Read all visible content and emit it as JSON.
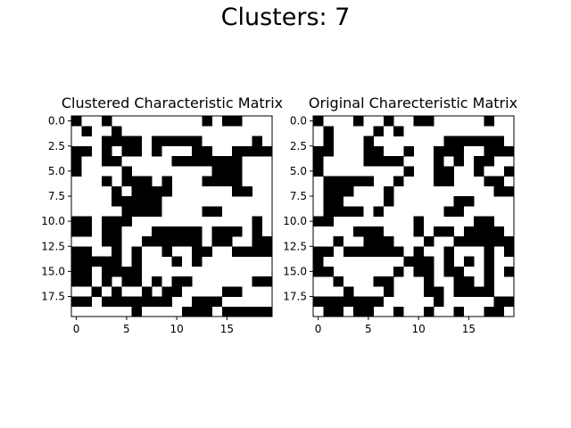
{
  "figure": {
    "suptitle": "Clusters: 7"
  },
  "chart_data": [
    {
      "type": "heatmap",
      "title": "Clustered Characteristic Matrix",
      "rows": 20,
      "cols": 20,
      "cmap": "binary",
      "colors": {
        "1": "#000000",
        "0": "#ffffff"
      },
      "x_ticks": [
        0,
        5,
        10,
        15
      ],
      "x_tick_labels": [
        "0",
        "5",
        "10",
        "15"
      ],
      "y_ticks": [
        0,
        2.5,
        5,
        7.5,
        10,
        12.5,
        15,
        17.5
      ],
      "y_tick_labels": [
        "0.0",
        "2.5",
        "5.0",
        "7.5",
        "10.0",
        "12.5",
        "15.0",
        "17.5"
      ],
      "matrix": [
        [
          1,
          0,
          0,
          1,
          0,
          0,
          0,
          0,
          0,
          0,
          0,
          0,
          0,
          1,
          0,
          1,
          1,
          0,
          0,
          0
        ],
        [
          0,
          1,
          0,
          0,
          1,
          0,
          0,
          0,
          0,
          0,
          0,
          0,
          0,
          0,
          0,
          0,
          0,
          0,
          0,
          0
        ],
        [
          0,
          0,
          0,
          1,
          1,
          1,
          1,
          0,
          1,
          1,
          1,
          1,
          1,
          0,
          0,
          0,
          0,
          0,
          1,
          0
        ],
        [
          1,
          1,
          0,
          1,
          0,
          1,
          1,
          0,
          1,
          0,
          0,
          0,
          1,
          1,
          0,
          0,
          1,
          1,
          1,
          1
        ],
        [
          1,
          0,
          0,
          1,
          1,
          0,
          0,
          0,
          0,
          0,
          1,
          1,
          1,
          1,
          1,
          1,
          1,
          0,
          0,
          0
        ],
        [
          1,
          0,
          0,
          0,
          0,
          1,
          0,
          0,
          0,
          0,
          0,
          0,
          0,
          0,
          1,
          1,
          1,
          0,
          0,
          0
        ],
        [
          0,
          0,
          0,
          1,
          0,
          1,
          1,
          1,
          0,
          1,
          0,
          0,
          0,
          1,
          1,
          1,
          1,
          0,
          0,
          0
        ],
        [
          0,
          0,
          0,
          0,
          1,
          0,
          1,
          1,
          1,
          1,
          0,
          0,
          0,
          0,
          0,
          0,
          1,
          1,
          0,
          0
        ],
        [
          0,
          0,
          0,
          0,
          1,
          1,
          1,
          1,
          1,
          0,
          0,
          0,
          0,
          0,
          0,
          0,
          0,
          0,
          0,
          0
        ],
        [
          0,
          0,
          0,
          0,
          0,
          1,
          1,
          1,
          1,
          0,
          0,
          0,
          0,
          1,
          1,
          0,
          0,
          0,
          0,
          0
        ],
        [
          1,
          1,
          0,
          1,
          1,
          1,
          0,
          0,
          0,
          0,
          0,
          0,
          0,
          0,
          0,
          0,
          0,
          0,
          1,
          0
        ],
        [
          1,
          1,
          0,
          1,
          1,
          0,
          0,
          0,
          1,
          1,
          1,
          1,
          1,
          0,
          1,
          1,
          1,
          0,
          1,
          0
        ],
        [
          0,
          0,
          0,
          1,
          1,
          0,
          0,
          1,
          1,
          1,
          1,
          1,
          1,
          0,
          1,
          1,
          0,
          0,
          1,
          1
        ],
        [
          1,
          1,
          0,
          0,
          1,
          0,
          1,
          0,
          0,
          1,
          0,
          0,
          1,
          1,
          0,
          0,
          1,
          1,
          1,
          1
        ],
        [
          1,
          1,
          1,
          1,
          1,
          0,
          1,
          0,
          0,
          0,
          1,
          0,
          1,
          0,
          0,
          0,
          0,
          0,
          0,
          0
        ],
        [
          1,
          1,
          0,
          1,
          1,
          1,
          1,
          0,
          0,
          0,
          0,
          0,
          0,
          0,
          0,
          0,
          0,
          0,
          0,
          0
        ],
        [
          1,
          1,
          0,
          1,
          0,
          1,
          1,
          0,
          1,
          0,
          1,
          1,
          0,
          0,
          0,
          0,
          0,
          0,
          1,
          1
        ],
        [
          0,
          0,
          1,
          0,
          1,
          0,
          0,
          1,
          0,
          1,
          1,
          0,
          0,
          0,
          0,
          1,
          1,
          0,
          0,
          0
        ],
        [
          1,
          1,
          0,
          1,
          1,
          1,
          1,
          1,
          1,
          1,
          0,
          0,
          1,
          1,
          1,
          0,
          0,
          0,
          0,
          0
        ],
        [
          0,
          0,
          0,
          0,
          0,
          0,
          1,
          0,
          0,
          0,
          0,
          1,
          1,
          1,
          0,
          1,
          1,
          1,
          1,
          1
        ]
      ]
    },
    {
      "type": "heatmap",
      "title": "Original Charecteristic Matrix",
      "rows": 20,
      "cols": 20,
      "cmap": "binary",
      "colors": {
        "1": "#000000",
        "0": "#ffffff"
      },
      "x_ticks": [
        0,
        5,
        10,
        15
      ],
      "x_tick_labels": [
        "0",
        "5",
        "10",
        "15"
      ],
      "y_ticks": [
        0,
        2.5,
        5,
        7.5,
        10,
        12.5,
        15,
        17.5
      ],
      "y_tick_labels": [
        "0.0",
        "2.5",
        "5.0",
        "7.5",
        "10.0",
        "12.5",
        "15.0",
        "17.5"
      ],
      "matrix": [
        [
          1,
          0,
          0,
          0,
          1,
          0,
          0,
          1,
          0,
          0,
          1,
          1,
          0,
          0,
          0,
          0,
          0,
          1,
          0,
          0
        ],
        [
          0,
          1,
          0,
          0,
          0,
          0,
          1,
          0,
          1,
          0,
          0,
          0,
          0,
          0,
          0,
          0,
          0,
          0,
          0,
          0
        ],
        [
          0,
          1,
          0,
          0,
          0,
          1,
          0,
          0,
          0,
          0,
          0,
          0,
          0,
          1,
          1,
          1,
          1,
          1,
          1,
          0
        ],
        [
          1,
          1,
          0,
          0,
          0,
          1,
          1,
          0,
          0,
          1,
          0,
          0,
          1,
          1,
          1,
          0,
          0,
          1,
          1,
          1
        ],
        [
          1,
          0,
          0,
          0,
          0,
          1,
          1,
          1,
          1,
          0,
          0,
          0,
          1,
          0,
          1,
          0,
          1,
          1,
          0,
          0
        ],
        [
          1,
          0,
          0,
          0,
          0,
          0,
          0,
          0,
          0,
          1,
          0,
          0,
          1,
          1,
          0,
          0,
          1,
          0,
          0,
          1
        ],
        [
          0,
          1,
          1,
          1,
          1,
          1,
          0,
          0,
          1,
          0,
          0,
          0,
          1,
          1,
          0,
          0,
          0,
          1,
          1,
          0
        ],
        [
          0,
          1,
          1,
          1,
          0,
          0,
          0,
          1,
          0,
          0,
          0,
          0,
          0,
          0,
          0,
          0,
          0,
          0,
          1,
          1
        ],
        [
          0,
          1,
          1,
          0,
          0,
          0,
          0,
          1,
          0,
          0,
          0,
          0,
          0,
          0,
          1,
          1,
          0,
          0,
          0,
          0
        ],
        [
          0,
          1,
          1,
          1,
          1,
          0,
          1,
          0,
          0,
          0,
          0,
          0,
          0,
          1,
          1,
          0,
          0,
          0,
          0,
          0
        ],
        [
          1,
          1,
          0,
          0,
          0,
          0,
          0,
          0,
          0,
          0,
          1,
          0,
          0,
          0,
          0,
          0,
          1,
          1,
          0,
          0
        ],
        [
          0,
          0,
          0,
          0,
          1,
          1,
          1,
          0,
          0,
          0,
          1,
          0,
          1,
          1,
          0,
          1,
          1,
          1,
          1,
          0
        ],
        [
          0,
          0,
          1,
          0,
          0,
          1,
          1,
          1,
          0,
          0,
          0,
          1,
          0,
          0,
          1,
          1,
          1,
          1,
          1,
          1
        ],
        [
          1,
          1,
          0,
          1,
          1,
          1,
          1,
          1,
          1,
          0,
          1,
          0,
          0,
          1,
          0,
          0,
          0,
          1,
          0,
          1
        ],
        [
          1,
          0,
          0,
          0,
          0,
          0,
          0,
          0,
          0,
          1,
          1,
          1,
          0,
          1,
          0,
          1,
          0,
          1,
          0,
          0
        ],
        [
          1,
          1,
          0,
          0,
          0,
          0,
          0,
          0,
          1,
          0,
          1,
          1,
          0,
          1,
          1,
          0,
          0,
          1,
          0,
          1
        ],
        [
          0,
          0,
          1,
          0,
          0,
          0,
          1,
          1,
          0,
          0,
          0,
          1,
          0,
          0,
          1,
          1,
          0,
          1,
          0,
          0
        ],
        [
          0,
          0,
          0,
          1,
          0,
          0,
          0,
          1,
          0,
          0,
          0,
          1,
          1,
          0,
          1,
          1,
          1,
          1,
          0,
          0
        ],
        [
          1,
          1,
          1,
          1,
          1,
          1,
          1,
          0,
          0,
          0,
          0,
          0,
          1,
          0,
          0,
          0,
          0,
          0,
          1,
          1
        ],
        [
          0,
          1,
          1,
          0,
          1,
          1,
          0,
          0,
          1,
          0,
          0,
          1,
          0,
          0,
          1,
          0,
          0,
          1,
          1,
          0
        ]
      ]
    }
  ]
}
